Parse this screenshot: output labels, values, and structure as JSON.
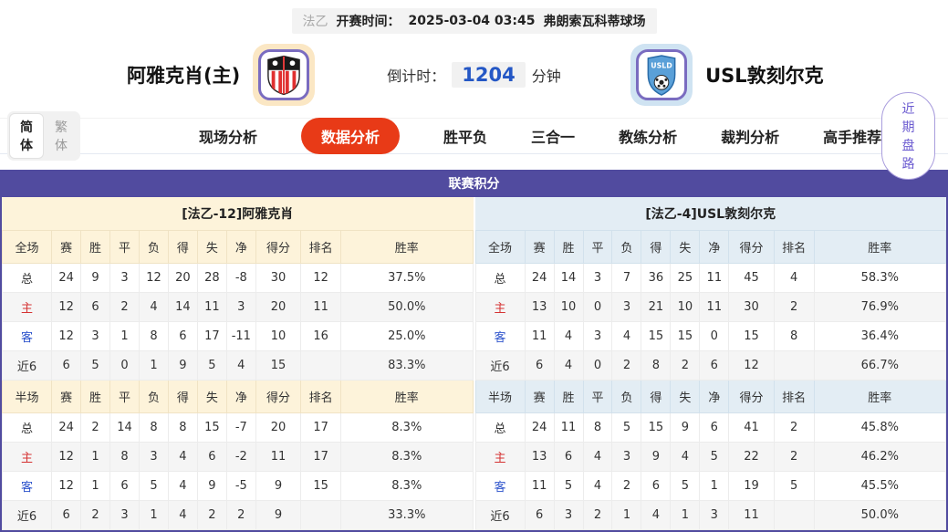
{
  "top_bar": {
    "league": "法乙",
    "kickoff_label": "开赛时间：",
    "kickoff_time": "2025-03-04 03:45",
    "venue": "弗朗索瓦科蒂球场"
  },
  "match_header": {
    "home_team": "阿雅克肖(主)",
    "away_team": "USL敦刻尔克",
    "away_logo_text": "USLD",
    "countdown_label": "倒计时：",
    "countdown_value": "1204",
    "countdown_unit": "分钟"
  },
  "nav": {
    "lang_simplified": "简体",
    "lang_traditional": "繁体",
    "tabs": [
      {
        "label": "现场分析",
        "active": false
      },
      {
        "label": "数据分析",
        "active": true
      },
      {
        "label": "胜平负",
        "active": false
      },
      {
        "label": "三合一",
        "active": false
      },
      {
        "label": "教练分析",
        "active": false
      },
      {
        "label": "裁判分析",
        "active": false
      },
      {
        "label": "高手推荐",
        "active": false
      }
    ],
    "recent_trend_button": "近期盘路"
  },
  "section_title": "联赛积分",
  "columns_full": [
    "全场",
    "赛",
    "胜",
    "平",
    "负",
    "得",
    "失",
    "净",
    "得分",
    "排名",
    "胜率"
  ],
  "columns_half": [
    "半场",
    "赛",
    "胜",
    "平",
    "负",
    "得",
    "失",
    "净",
    "得分",
    "排名",
    "胜率"
  ],
  "home_table": {
    "title": "[法乙-12]阿雅克肖",
    "full": [
      {
        "label": "总",
        "type": "total",
        "cells": [
          "24",
          "9",
          "3",
          "12",
          "20",
          "28",
          "-8",
          "30",
          "12",
          "37.5%"
        ]
      },
      {
        "label": "主",
        "type": "home",
        "cells": [
          "12",
          "6",
          "2",
          "4",
          "14",
          "11",
          "3",
          "20",
          "11",
          "50.0%"
        ]
      },
      {
        "label": "客",
        "type": "away",
        "cells": [
          "12",
          "3",
          "1",
          "8",
          "6",
          "17",
          "-11",
          "10",
          "16",
          "25.0%"
        ]
      },
      {
        "label": "近6",
        "type": "recent",
        "cells": [
          "6",
          "5",
          "0",
          "1",
          "9",
          "5",
          "4",
          "15",
          "",
          "83.3%"
        ]
      }
    ],
    "half": [
      {
        "label": "总",
        "type": "total",
        "cells": [
          "24",
          "2",
          "14",
          "8",
          "8",
          "15",
          "-7",
          "20",
          "17",
          "8.3%"
        ]
      },
      {
        "label": "主",
        "type": "home",
        "cells": [
          "12",
          "1",
          "8",
          "3",
          "4",
          "6",
          "-2",
          "11",
          "17",
          "8.3%"
        ]
      },
      {
        "label": "客",
        "type": "away",
        "cells": [
          "12",
          "1",
          "6",
          "5",
          "4",
          "9",
          "-5",
          "9",
          "15",
          "8.3%"
        ]
      },
      {
        "label": "近6",
        "type": "recent",
        "cells": [
          "6",
          "2",
          "3",
          "1",
          "4",
          "2",
          "2",
          "9",
          "",
          "33.3%"
        ]
      }
    ]
  },
  "away_table": {
    "title": "[法乙-4]USL敦刻尔克",
    "full": [
      {
        "label": "总",
        "type": "total",
        "cells": [
          "24",
          "14",
          "3",
          "7",
          "36",
          "25",
          "11",
          "45",
          "4",
          "58.3%"
        ]
      },
      {
        "label": "主",
        "type": "home",
        "cells": [
          "13",
          "10",
          "0",
          "3",
          "21",
          "10",
          "11",
          "30",
          "2",
          "76.9%"
        ]
      },
      {
        "label": "客",
        "type": "away",
        "cells": [
          "11",
          "4",
          "3",
          "4",
          "15",
          "15",
          "0",
          "15",
          "8",
          "36.4%"
        ]
      },
      {
        "label": "近6",
        "type": "recent",
        "cells": [
          "6",
          "4",
          "0",
          "2",
          "8",
          "2",
          "6",
          "12",
          "",
          "66.7%"
        ]
      }
    ],
    "half": [
      {
        "label": "总",
        "type": "total",
        "cells": [
          "24",
          "11",
          "8",
          "5",
          "15",
          "9",
          "6",
          "41",
          "2",
          "45.8%"
        ]
      },
      {
        "label": "主",
        "type": "home",
        "cells": [
          "13",
          "6",
          "4",
          "3",
          "9",
          "4",
          "5",
          "22",
          "2",
          "46.2%"
        ]
      },
      {
        "label": "客",
        "type": "away",
        "cells": [
          "11",
          "5",
          "4",
          "2",
          "6",
          "5",
          "1",
          "19",
          "5",
          "45.5%"
        ]
      },
      {
        "label": "近6",
        "type": "recent",
        "cells": [
          "6",
          "3",
          "2",
          "1",
          "4",
          "1",
          "3",
          "11",
          "",
          "50.0%"
        ]
      }
    ]
  },
  "colors": {
    "accent": "#514B9F",
    "tab_active": "#E83A17",
    "home_panel": "#FDF3DA",
    "away_panel": "#E3EDF4",
    "row_stripe": "#F5F5F5",
    "home_row_red": "#D53333",
    "away_row_blue": "#2F55CC",
    "countdown_blue": "#2457C5",
    "trend_purple": "#6B5BD0"
  }
}
